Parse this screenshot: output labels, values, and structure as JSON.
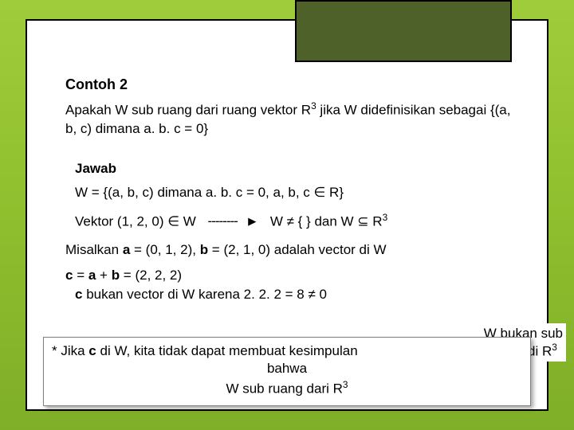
{
  "heading": "Contoh 2",
  "intro_1": "Apakah W sub ruang dari ruang vektor R",
  "intro_sup1": "3",
  "intro_2": "  jika W didefinisikan sebagai {(a, b, c) dimana a. b. c = 0}",
  "jawab": "Jawab",
  "w_def": "W = {(a, b, c) dimana a. b. c = 0,  a, b, c ∈ R}",
  "vektor_in_w": "Vektor (1, 2, 0) ∈ W",
  "arrow": "--------",
  "w_nonempty_1": "W ≠ { } dan W ⊆ R",
  "w_nonempty_sup": "3",
  "misalkan_1": "Misalkan  ",
  "a_bold": "a",
  "misalkan_2": " = (0, 1, 2), ",
  "b_bold": "b",
  "misalkan_3": " = (2, 1, 0) adalah vector di W",
  "c_bold": "c",
  "c_eq": " =  ",
  "c_sum": " = (2, 2, 2)",
  "c_not": " bukan vector di W karena 2. 2. 2 = 8 ≠ 0",
  "wbox_1": "W bukan sub",
  "wbox_2": "ruang di R",
  "wbox_sup": "3",
  "foot_1a": "* Jika ",
  "foot_1b": " di W, kita tidak dapat membuat kesimpulan",
  "foot_2": "bahwa",
  "foot_3a": "W sub ruang dari R",
  "foot_3sup": "3",
  "plus": " + "
}
